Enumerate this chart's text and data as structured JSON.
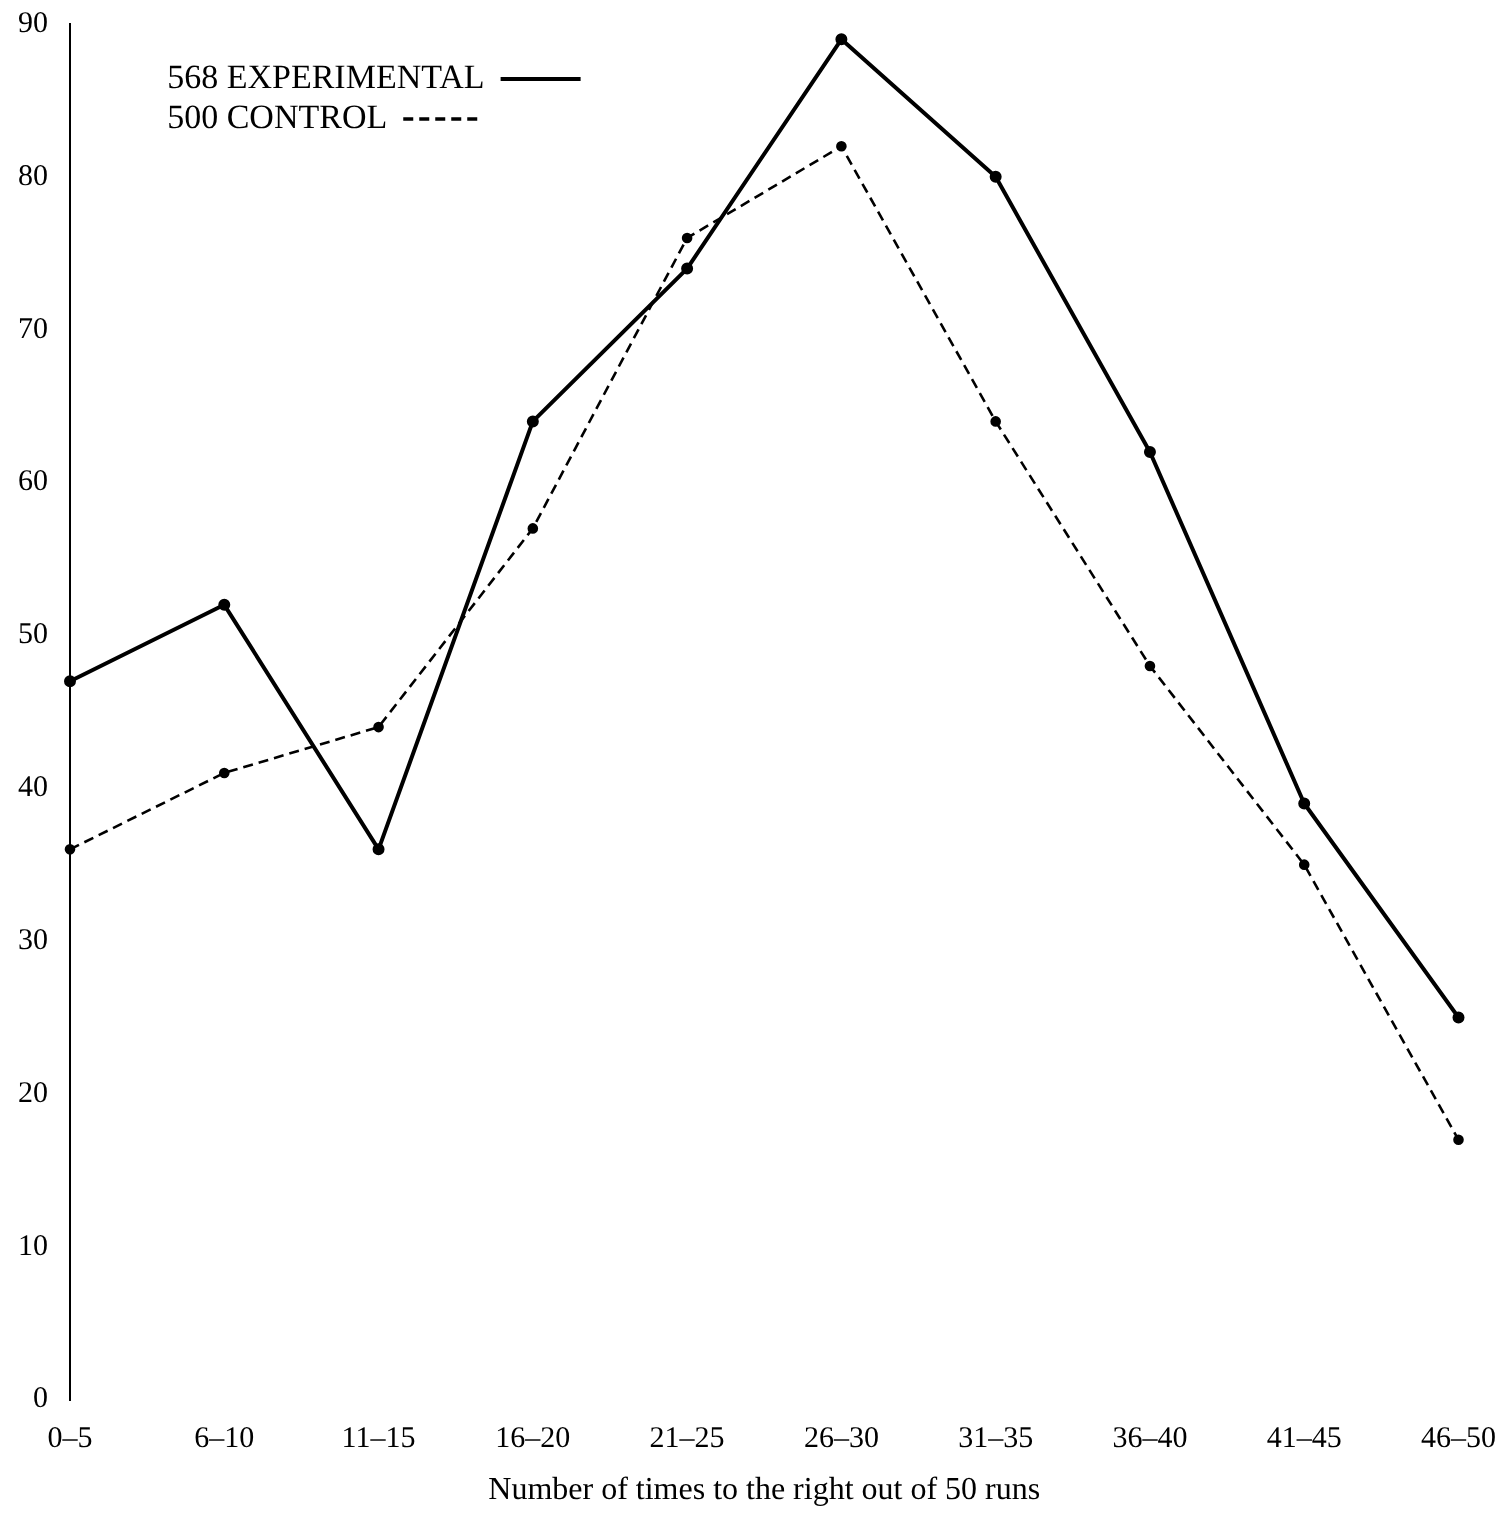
{
  "chart_data": {
    "type": "line",
    "xlabel": "Number of times to the right out of 50 runs",
    "categories": [
      "0–5",
      "6–10",
      "11–15",
      "16–20",
      "21–25",
      "26–30",
      "31–35",
      "36–40",
      "41–45",
      "46–50"
    ],
    "series": [
      {
        "name": "568 EXPERIMENTAL",
        "color": "#000000",
        "line_style": "solid",
        "values": [
          47,
          52,
          36,
          64,
          74,
          89,
          80,
          62,
          39,
          25
        ]
      },
      {
        "name": "500 CONTROL",
        "color": "#000000",
        "line_style": "dashed",
        "values": [
          36,
          41,
          44,
          57,
          76,
          82,
          64,
          48,
          35,
          17
        ]
      }
    ],
    "ylim": [
      0,
      90
    ],
    "yticks": [
      0,
      10,
      20,
      30,
      40,
      50,
      60,
      70,
      80,
      90
    ],
    "grid": false,
    "legend": "top left",
    "marker": "circle"
  }
}
